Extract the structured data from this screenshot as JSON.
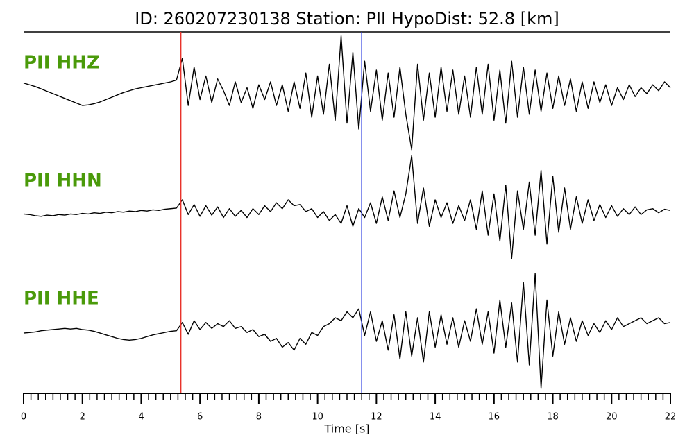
{
  "chart_data": {
    "type": "line",
    "title": "ID: 260207230138   Station: PII   HypoDist:    52.8 [km]",
    "xlabel": "Time [s]",
    "xlim": [
      0,
      22
    ],
    "xticks": [
      0,
      2,
      4,
      6,
      8,
      10,
      12,
      14,
      16,
      18,
      20,
      22
    ],
    "xminorticks": [
      0.25,
      0.5,
      0.75,
      1,
      1.25,
      1.5,
      1.75,
      2.25,
      2.5,
      2.75,
      3,
      3.25,
      3.5,
      3.75,
      4.25,
      4.5,
      4.75,
      5,
      5.25,
      5.5,
      5.75,
      6.25,
      6.5,
      6.75,
      7,
      7.25,
      7.5,
      7.75,
      8.25,
      8.5,
      8.75,
      9,
      9.25,
      9.5,
      9.75,
      10.25,
      10.5,
      10.75,
      11,
      11.25,
      11.5,
      11.75,
      12.25,
      12.5,
      12.75,
      13,
      13.25,
      13.5,
      13.75,
      14.25,
      14.5,
      14.75,
      15,
      15.25,
      15.5,
      15.75,
      16.25,
      16.5,
      16.75,
      17,
      17.25,
      17.5,
      17.75,
      18.25,
      18.5,
      18.75,
      19,
      19.25,
      19.5,
      19.75,
      20.25,
      20.5,
      20.75,
      21,
      21.25,
      21.5,
      21.75
    ],
    "picks": [
      {
        "x": 5.35,
        "color": "#e8322a"
      },
      {
        "x": 11.5,
        "color": "#2a3be0"
      }
    ],
    "x": [
      0,
      0.2,
      0.4,
      0.6,
      0.8,
      1,
      1.2,
      1.4,
      1.6,
      1.8,
      2,
      2.2,
      2.4,
      2.6,
      2.8,
      3,
      3.2,
      3.4,
      3.6,
      3.8,
      4,
      4.2,
      4.4,
      4.6,
      4.8,
      5,
      5.2,
      5.4,
      5.6,
      5.8,
      6,
      6.2,
      6.4,
      6.6,
      6.8,
      7,
      7.2,
      7.4,
      7.6,
      7.8,
      8,
      8.2,
      8.4,
      8.6,
      8.8,
      9,
      9.2,
      9.4,
      9.6,
      9.8,
      10,
      10.2,
      10.4,
      10.6,
      10.8,
      11,
      11.2,
      11.4,
      11.6,
      11.8,
      12,
      12.2,
      12.4,
      12.6,
      12.8,
      13,
      13.2,
      13.4,
      13.6,
      13.8,
      14,
      14.2,
      14.4,
      14.6,
      14.8,
      15,
      15.2,
      15.4,
      15.6,
      15.8,
      16,
      16.2,
      16.4,
      16.6,
      16.8,
      17,
      17.2,
      17.4,
      17.6,
      17.8,
      18,
      18.2,
      18.4,
      18.6,
      18.8,
      19,
      19.2,
      19.4,
      19.6,
      19.8,
      20,
      20.2,
      20.4,
      20.6,
      20.8,
      21,
      21.2,
      21.4,
      21.6,
      21.8,
      22
    ],
    "series": [
      {
        "name": "PII HHZ",
        "color": "#000000",
        "label_color": "#4a9a0a",
        "ylim": [
          -1,
          1
        ],
        "values": [
          0.18,
          0.15,
          0.12,
          0.08,
          0.04,
          0.0,
          -0.04,
          -0.08,
          -0.12,
          -0.16,
          -0.2,
          -0.19,
          -0.17,
          -0.14,
          -0.1,
          -0.06,
          -0.02,
          0.02,
          0.05,
          0.08,
          0.1,
          0.12,
          0.14,
          0.16,
          0.18,
          0.2,
          0.23,
          0.6,
          -0.2,
          0.45,
          -0.1,
          0.3,
          -0.15,
          0.25,
          0.05,
          -0.2,
          0.2,
          -0.15,
          0.1,
          -0.25,
          0.15,
          -0.1,
          0.2,
          -0.2,
          0.15,
          -0.3,
          0.2,
          -0.25,
          0.35,
          -0.4,
          0.3,
          -0.35,
          0.5,
          -0.45,
          0.98,
          -0.5,
          0.7,
          -0.6,
          0.55,
          -0.3,
          0.4,
          -0.45,
          0.35,
          -0.4,
          0.45,
          -0.35,
          -0.95,
          0.5,
          -0.45,
          0.35,
          -0.4,
          0.45,
          -0.3,
          0.4,
          -0.35,
          0.3,
          -0.4,
          0.45,
          -0.35,
          0.5,
          -0.45,
          0.4,
          -0.5,
          0.55,
          -0.4,
          0.45,
          -0.35,
          0.4,
          -0.3,
          0.35,
          -0.25,
          0.3,
          -0.2,
          0.25,
          -0.3,
          0.2,
          -0.25,
          0.2,
          -0.15,
          0.15,
          -0.2,
          0.1,
          -0.1,
          0.15,
          -0.05,
          0.1,
          0.0,
          0.15,
          0.05,
          0.2,
          0.1
        ]
      },
      {
        "name": "PII HHN",
        "color": "#000000",
        "label_color": "#4a9a0a",
        "ylim": [
          -1,
          1
        ],
        "values": [
          -0.04,
          -0.05,
          -0.07,
          -0.08,
          -0.06,
          -0.07,
          -0.05,
          -0.06,
          -0.04,
          -0.05,
          -0.03,
          -0.04,
          -0.02,
          -0.03,
          -0.01,
          -0.02,
          0.0,
          -0.01,
          0.01,
          0.0,
          0.02,
          0.01,
          0.03,
          0.02,
          0.04,
          0.05,
          0.06,
          0.2,
          -0.05,
          0.12,
          -0.08,
          0.1,
          -0.06,
          0.08,
          -0.1,
          0.05,
          -0.08,
          0.02,
          -0.1,
          0.05,
          -0.05,
          0.1,
          0.0,
          0.15,
          0.05,
          0.2,
          0.1,
          0.12,
          0.0,
          0.05,
          -0.1,
          0.0,
          -0.15,
          -0.05,
          -0.2,
          0.1,
          -0.25,
          0.05,
          -0.1,
          0.15,
          -0.2,
          0.25,
          -0.15,
          0.35,
          -0.1,
          0.3,
          0.95,
          -0.2,
          0.4,
          -0.25,
          0.2,
          -0.1,
          0.15,
          -0.2,
          0.1,
          -0.15,
          0.2,
          -0.3,
          0.35,
          -0.4,
          0.3,
          -0.5,
          0.45,
          -0.8,
          0.35,
          -0.3,
          0.5,
          -0.4,
          0.7,
          -0.55,
          0.6,
          -0.35,
          0.4,
          -0.3,
          0.25,
          -0.2,
          0.2,
          -0.15,
          0.12,
          -0.1,
          0.1,
          -0.08,
          0.05,
          -0.05,
          0.08,
          -0.05,
          0.03,
          0.05,
          -0.02,
          0.04,
          0.02
        ]
      },
      {
        "name": "PII HHE",
        "color": "#000000",
        "label_color": "#4a9a0a",
        "ylim": [
          -1,
          1
        ],
        "values": [
          -0.06,
          -0.05,
          -0.04,
          -0.02,
          -0.01,
          0.0,
          0.01,
          0.02,
          0.01,
          0.02,
          0.0,
          -0.01,
          -0.03,
          -0.06,
          -0.09,
          -0.12,
          -0.15,
          -0.17,
          -0.18,
          -0.17,
          -0.15,
          -0.12,
          -0.09,
          -0.07,
          -0.05,
          -0.03,
          -0.02,
          0.12,
          -0.08,
          0.15,
          0.0,
          0.12,
          0.02,
          0.1,
          0.05,
          0.15,
          0.02,
          0.05,
          -0.05,
          0.0,
          -0.12,
          -0.08,
          -0.2,
          -0.15,
          -0.3,
          -0.22,
          -0.35,
          -0.15,
          -0.25,
          -0.05,
          -0.1,
          0.05,
          0.1,
          0.2,
          0.15,
          0.3,
          0.2,
          0.35,
          -0.1,
          0.3,
          -0.2,
          0.15,
          -0.35,
          0.25,
          -0.5,
          0.3,
          -0.45,
          0.2,
          -0.55,
          0.3,
          -0.3,
          0.25,
          -0.25,
          0.2,
          -0.3,
          0.15,
          -0.2,
          0.35,
          -0.25,
          0.3,
          -0.4,
          0.5,
          -0.3,
          0.45,
          -0.55,
          0.8,
          -0.6,
          0.95,
          -1.0,
          0.5,
          -0.45,
          0.3,
          -0.25,
          0.2,
          -0.2,
          0.15,
          -0.1,
          0.1,
          -0.05,
          0.15,
          0.0,
          0.2,
          0.05,
          0.1,
          0.15,
          0.2,
          0.1,
          0.15,
          0.2,
          0.1,
          0.12
        ]
      }
    ]
  }
}
